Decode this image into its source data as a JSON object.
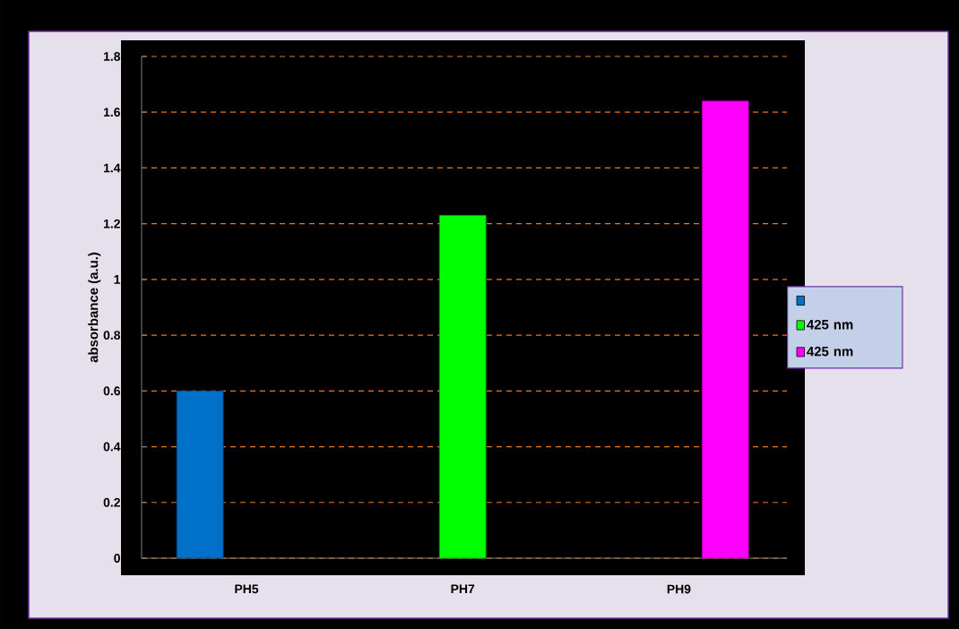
{
  "chart_data": {
    "type": "bar",
    "ylabel": "absorbance (a.u.)",
    "categories": [
      "PH5",
      "PH7",
      "PH9"
    ],
    "series": [
      {
        "color": "#0070c8",
        "values": [
          0.6,
          null,
          null
        ]
      },
      {
        "name": "425 nm",
        "color": "#00ff00",
        "values": [
          null,
          1.23,
          null
        ]
      },
      {
        "name": "425 nm",
        "color": "#ff00ff",
        "values": [
          null,
          null,
          1.64
        ]
      }
    ],
    "ylim": [
      0,
      1.8
    ],
    "yticks": [
      0,
      0.2,
      0.4,
      0.6,
      0.8,
      1,
      1.2,
      1.4,
      1.6,
      1.8
    ],
    "grid": "y",
    "legend": "right"
  }
}
